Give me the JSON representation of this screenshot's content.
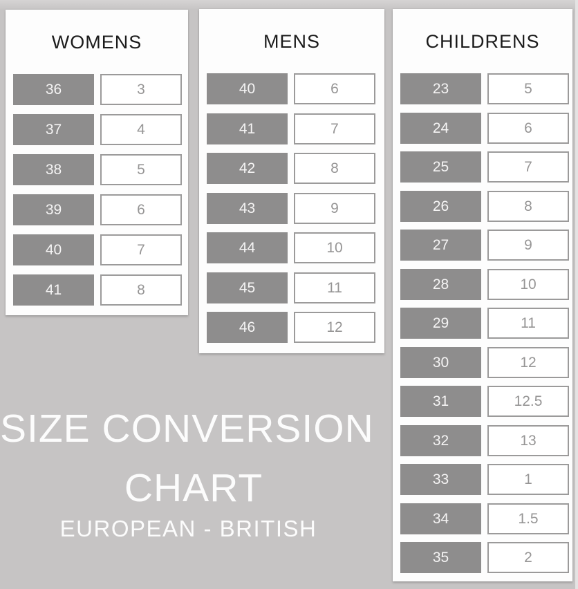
{
  "title": {
    "line1": "SIZE CONVERSION",
    "line2": "CHART",
    "subtitle": "EUROPEAN - BRITISH"
  },
  "panels": [
    {
      "title": "WOMENS",
      "rows": [
        {
          "eu": "36",
          "uk": "3"
        },
        {
          "eu": "37",
          "uk": "4"
        },
        {
          "eu": "38",
          "uk": "5"
        },
        {
          "eu": "39",
          "uk": "6"
        },
        {
          "eu": "40",
          "uk": "7"
        },
        {
          "eu": "41",
          "uk": "8"
        }
      ]
    },
    {
      "title": "MENS",
      "rows": [
        {
          "eu": "40",
          "uk": "6"
        },
        {
          "eu": "41",
          "uk": "7"
        },
        {
          "eu": "42",
          "uk": "8"
        },
        {
          "eu": "43",
          "uk": "9"
        },
        {
          "eu": "44",
          "uk": "10"
        },
        {
          "eu": "45",
          "uk": "11"
        },
        {
          "eu": "46",
          "uk": "12"
        }
      ]
    },
    {
      "title": "CHILDRENS",
      "rows": [
        {
          "eu": "23",
          "uk": "5"
        },
        {
          "eu": "24",
          "uk": "6"
        },
        {
          "eu": "25",
          "uk": "7"
        },
        {
          "eu": "26",
          "uk": "8"
        },
        {
          "eu": "27",
          "uk": "9"
        },
        {
          "eu": "28",
          "uk": "10"
        },
        {
          "eu": "29",
          "uk": "11"
        },
        {
          "eu": "30",
          "uk": "12"
        },
        {
          "eu": "31",
          "uk": "12.5"
        },
        {
          "eu": "32",
          "uk": "13"
        },
        {
          "eu": "33",
          "uk": "1"
        },
        {
          "eu": "34",
          "uk": "1.5"
        },
        {
          "eu": "35",
          "uk": "2"
        }
      ]
    }
  ],
  "chart_data": [
    {
      "type": "table",
      "title": "WOMENS",
      "columns": [
        "European",
        "British"
      ],
      "rows": [
        [
          36,
          3
        ],
        [
          37,
          4
        ],
        [
          38,
          5
        ],
        [
          39,
          6
        ],
        [
          40,
          7
        ],
        [
          41,
          8
        ]
      ]
    },
    {
      "type": "table",
      "title": "MENS",
      "columns": [
        "European",
        "British"
      ],
      "rows": [
        [
          40,
          6
        ],
        [
          41,
          7
        ],
        [
          42,
          8
        ],
        [
          43,
          9
        ],
        [
          44,
          10
        ],
        [
          45,
          11
        ],
        [
          46,
          12
        ]
      ]
    },
    {
      "type": "table",
      "title": "CHILDRENS",
      "columns": [
        "European",
        "British"
      ],
      "rows": [
        [
          23,
          5
        ],
        [
          24,
          6
        ],
        [
          25,
          7
        ],
        [
          26,
          8
        ],
        [
          27,
          9
        ],
        [
          28,
          10
        ],
        [
          29,
          11
        ],
        [
          30,
          12
        ],
        [
          31,
          12.5
        ],
        [
          32,
          13
        ],
        [
          33,
          1
        ],
        [
          34,
          1.5
        ],
        [
          35,
          2
        ]
      ]
    }
  ],
  "colors": {
    "background": "#c6c4c4",
    "panel": "#fdfdfd",
    "european_box": "#8e8d8d",
    "european_text": "#f5f4f4",
    "british_box_border": "#9b9a9a",
    "british_text": "#969595",
    "header_text": "#1b1b1b",
    "title_text": "#fcfcfc"
  }
}
